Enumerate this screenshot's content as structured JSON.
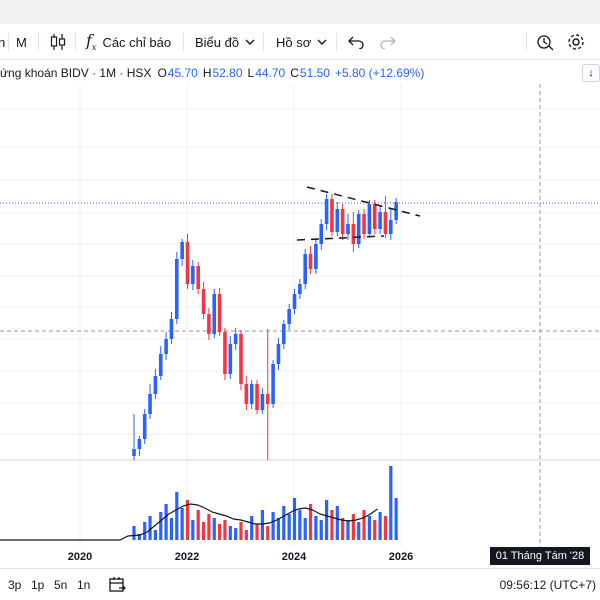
{
  "toolbar": {
    "interval_partial": "n",
    "interval": "M",
    "indicators_label": "Các chỉ báo",
    "chart_type_label": "Biểu đồ",
    "profile_label": "Hồ sơ"
  },
  "legend": {
    "symbol_title": "ứng khoán BIDV · 1M · HSX",
    "open_label": "O",
    "open": "45.70",
    "high_label": "H",
    "high": "52.80",
    "low_label": "L",
    "low": "44.70",
    "close_label": "C",
    "close": "51.50",
    "change": "+5.80 (+12.69%)"
  },
  "scroll_button": "↓",
  "x_axis": {
    "labels": [
      "2020",
      "2022",
      "2024",
      "2026"
    ]
  },
  "crosshair_date": "01 Tháng Tám '28",
  "bottom": {
    "ranges": [
      "3p",
      "1p",
      "5n",
      "1n"
    ],
    "clock": "09:56:12 (UTC+7)"
  },
  "colors": {
    "up": "#2962ff",
    "down": "#f23645",
    "grid": "#eef0f4"
  }
}
